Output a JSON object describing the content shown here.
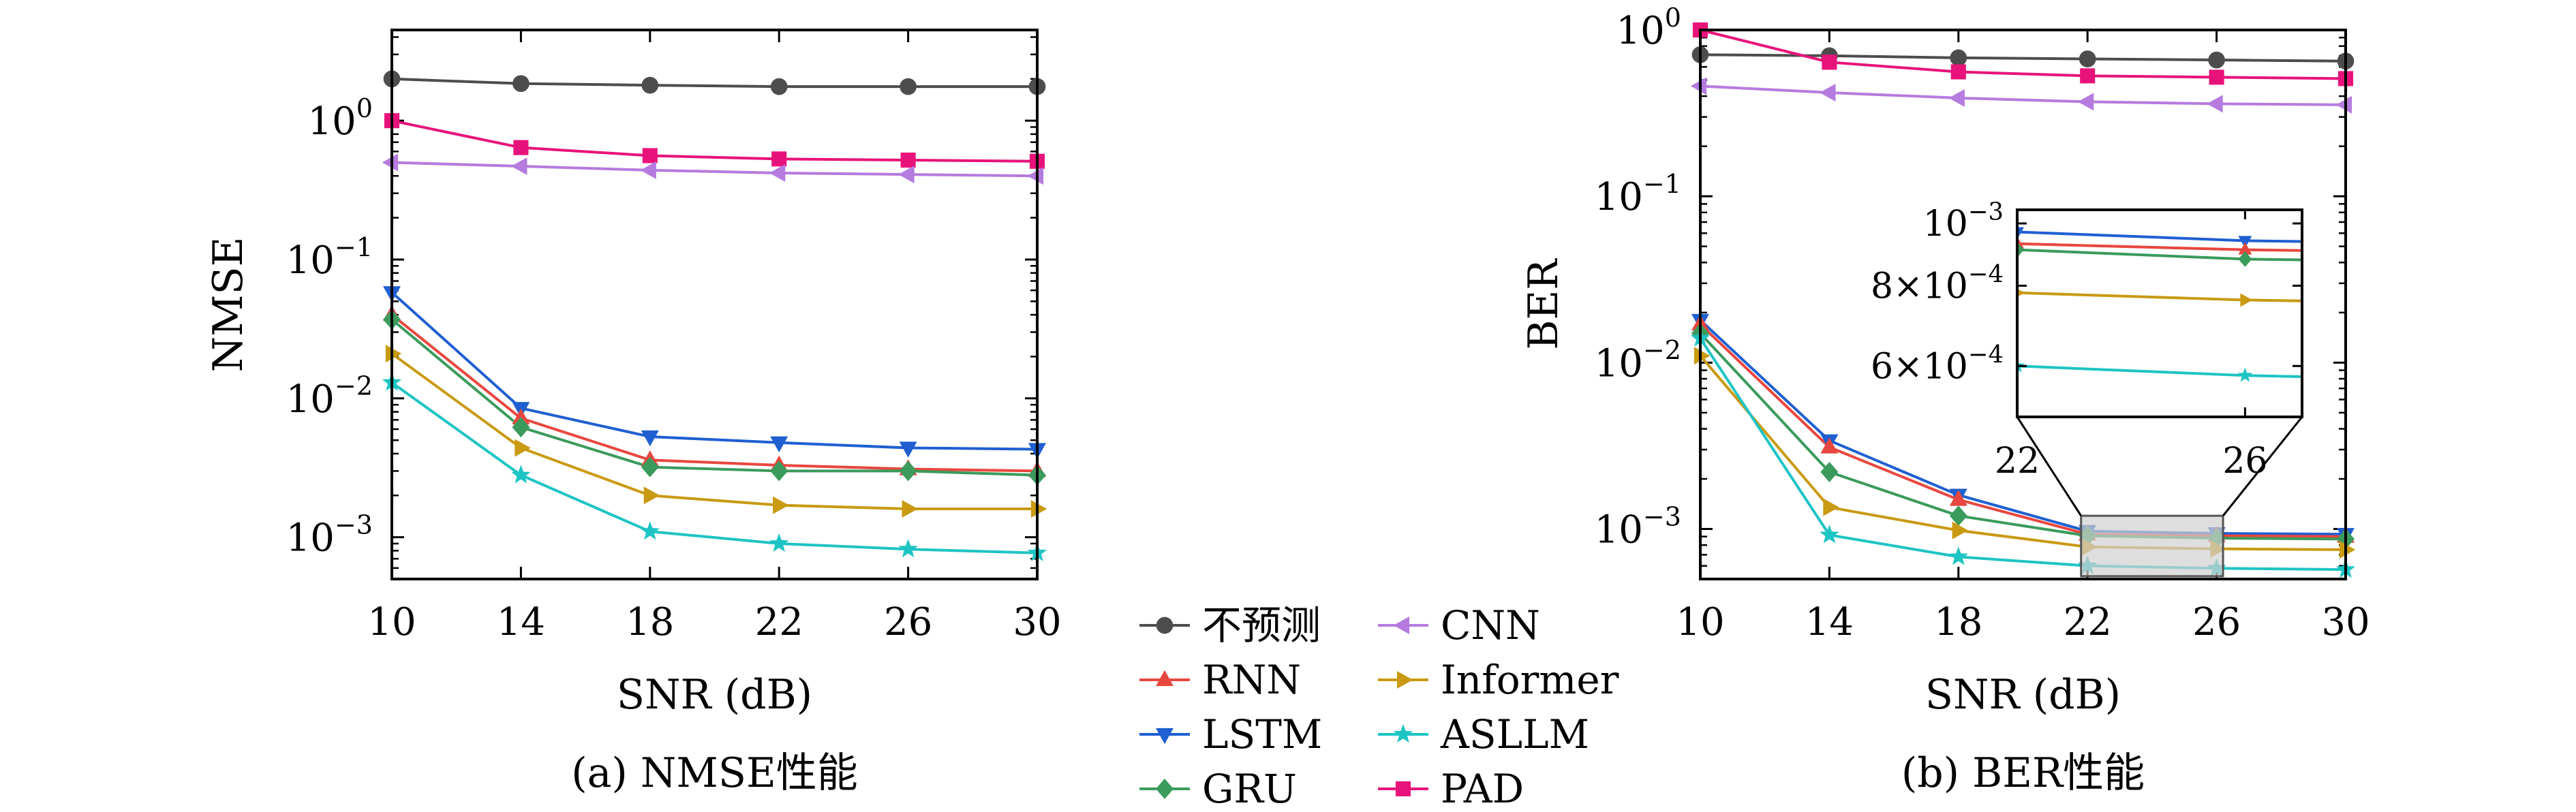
{
  "colors": {
    "不预测": "#4d4d4d",
    "RNN": "#e8473f",
    "LSTM": "#1f5fd1",
    "GRU": "#3a9b5c",
    "CNN": "#b57bdf",
    "Informer": "#c99a12",
    "ASLLM": "#1ec4c4",
    "PAD": "#e8137a"
  },
  "legend": {
    "items": [
      {
        "label": "不预测",
        "marker": "circle"
      },
      {
        "label": "RNN",
        "marker": "triangle-up"
      },
      {
        "label": "LSTM",
        "marker": "triangle-down"
      },
      {
        "label": "GRU",
        "marker": "diamond"
      },
      {
        "label": "CNN",
        "marker": "triangle-left"
      },
      {
        "label": "Informer",
        "marker": "triangle-right"
      },
      {
        "label": "ASLLM",
        "marker": "star"
      },
      {
        "label": "PAD",
        "marker": "square"
      }
    ]
  },
  "chart_data": [
    {
      "type": "line",
      "caption": "(a) NMSE性能",
      "xlabel": "SNR (dB)",
      "ylabel": "NMSE",
      "yscale": "log",
      "xlim": [
        10,
        30
      ],
      "ylim": [
        0.0005,
        4.5
      ],
      "xticks": [
        10,
        14,
        18,
        22,
        26,
        30
      ],
      "yticks": [
        {
          "value": 1,
          "label": "10",
          "exp": "0"
        },
        {
          "value": 0.1,
          "label": "10",
          "exp": "−1"
        },
        {
          "value": 0.01,
          "label": "10",
          "exp": "−2"
        },
        {
          "value": 0.001,
          "label": "10",
          "exp": "−3"
        }
      ],
      "x": [
        10,
        14,
        18,
        22,
        26,
        30
      ],
      "series": [
        {
          "name": "不预测",
          "values": [
            2.0,
            1.85,
            1.8,
            1.76,
            1.76,
            1.76
          ]
        },
        {
          "name": "PAD",
          "values": [
            1.0,
            0.64,
            0.56,
            0.53,
            0.52,
            0.51
          ]
        },
        {
          "name": "CNN",
          "values": [
            0.5,
            0.47,
            0.44,
            0.42,
            0.41,
            0.4
          ]
        },
        {
          "name": "LSTM",
          "values": [
            0.058,
            0.0085,
            0.0053,
            0.0048,
            0.0044,
            0.0043
          ]
        },
        {
          "name": "RNN",
          "values": [
            0.04,
            0.0072,
            0.0036,
            0.0033,
            0.0031,
            0.003
          ]
        },
        {
          "name": "GRU",
          "values": [
            0.037,
            0.0062,
            0.0032,
            0.003,
            0.003,
            0.0028
          ]
        },
        {
          "name": "Informer",
          "values": [
            0.021,
            0.0044,
            0.002,
            0.0017,
            0.0016,
            0.0016
          ]
        },
        {
          "name": "ASLLM",
          "values": [
            0.013,
            0.0028,
            0.0011,
            0.0009,
            0.00082,
            0.00077
          ]
        }
      ]
    },
    {
      "type": "line",
      "caption": "(b) BER性能",
      "xlabel": "SNR (dB)",
      "ylabel": "BER",
      "yscale": "log",
      "xlim": [
        10,
        30
      ],
      "ylim": [
        0.0005,
        1.0
      ],
      "xticks": [
        10,
        14,
        18,
        22,
        26,
        30
      ],
      "yticks": [
        {
          "value": 1,
          "label": "10",
          "exp": "0"
        },
        {
          "value": 0.1,
          "label": "10",
          "exp": "−1"
        },
        {
          "value": 0.01,
          "label": "10",
          "exp": "−2"
        },
        {
          "value": 0.001,
          "label": "10",
          "exp": "−3"
        }
      ],
      "x": [
        10,
        14,
        18,
        22,
        26,
        30
      ],
      "series": [
        {
          "name": "不预测",
          "values": [
            0.71,
            0.7,
            0.68,
            0.67,
            0.66,
            0.65
          ]
        },
        {
          "name": "PAD",
          "values": [
            1.0,
            0.64,
            0.56,
            0.53,
            0.52,
            0.51
          ]
        },
        {
          "name": "CNN",
          "values": [
            0.46,
            0.42,
            0.39,
            0.37,
            0.36,
            0.355
          ]
        },
        {
          "name": "LSTM",
          "values": [
            0.018,
            0.0034,
            0.0016,
            0.00097,
            0.00094,
            0.00093
          ]
        },
        {
          "name": "RNN",
          "values": [
            0.017,
            0.0031,
            0.0015,
            0.00093,
            0.00091,
            0.0009
          ]
        },
        {
          "name": "GRU",
          "values": [
            0.015,
            0.0022,
            0.0012,
            0.00091,
            0.00088,
            0.00087
          ]
        },
        {
          "name": "Informer",
          "values": [
            0.011,
            0.00135,
            0.00098,
            0.00078,
            0.00076,
            0.00075
          ]
        },
        {
          "name": "ASLLM",
          "values": [
            0.014,
            0.00092,
            0.00068,
            0.0006,
            0.00058,
            0.00057
          ]
        }
      ],
      "inset": {
        "xlim": [
          22,
          27
        ],
        "ylim": [
          0.0005,
          0.00105
        ],
        "xticks": [
          22,
          26
        ],
        "yticks": [
          {
            "value": 0.001,
            "label": "10",
            "exp": "−3"
          },
          {
            "value": 0.0008,
            "label": "8×10",
            "exp": "−4"
          },
          {
            "value": 0.0006,
            "label": "6×10",
            "exp": "−4"
          }
        ]
      }
    }
  ]
}
